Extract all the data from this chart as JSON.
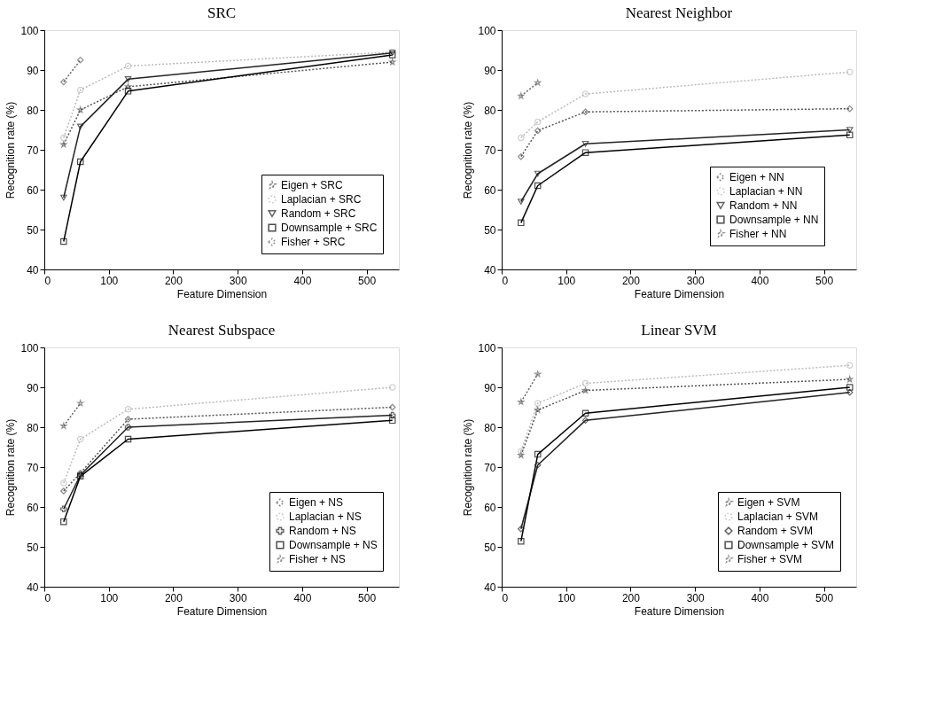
{
  "chart_data": [
    {
      "type": "line",
      "title": "SRC",
      "xlabel": "Feature Dimension",
      "ylabel": "Recognition rate (%)",
      "xlim": [
        0,
        550
      ],
      "xticks": [
        0,
        100,
        200,
        300,
        400,
        500
      ],
      "ylim": [
        40,
        100
      ],
      "yticks": [
        40,
        50,
        60,
        70,
        80,
        90,
        100
      ],
      "grid": false,
      "legend": "bottom right",
      "series": [
        {
          "name": "Eigen + SRC",
          "color": "#555555",
          "marker": "star",
          "line_style": "dotted",
          "x": [
            30,
            56,
            130,
            540
          ],
          "values": [
            71.3,
            80,
            85.8,
            92
          ]
        },
        {
          "name": "Laplacian + SRC",
          "color": "#bbbbbb",
          "marker": "circle",
          "line_style": "dotted",
          "x": [
            30,
            56,
            130,
            540
          ],
          "values": [
            73,
            85,
            91,
            94.5
          ]
        },
        {
          "name": "Random + SRC",
          "color": "#222222",
          "marker": "triangle",
          "line_style": "solid",
          "x": [
            30,
            56,
            130,
            540
          ],
          "values": [
            58,
            75.8,
            87.7,
            94.3
          ]
        },
        {
          "name": "Downsample + SRC",
          "color": "#000000",
          "marker": "square",
          "line_style": "solid",
          "x": [
            30,
            56,
            130,
            540
          ],
          "values": [
            47,
            67,
            84.7,
            93.8
          ]
        },
        {
          "name": "Fisher + SRC",
          "color": "#666666",
          "marker": "diamond",
          "line_style": "dotted",
          "x": [
            30,
            56
          ],
          "values": [
            87,
            92.5
          ]
        }
      ]
    },
    {
      "type": "line",
      "title": "Nearest Neighbor",
      "xlabel": "Feature Dimension",
      "ylabel": "Recognition rate (%)",
      "xlim": [
        0,
        550
      ],
      "xticks": [
        0,
        100,
        200,
        300,
        400,
        500
      ],
      "ylim": [
        40,
        100
      ],
      "yticks": [
        40,
        50,
        60,
        70,
        80,
        90,
        100
      ],
      "grid": false,
      "legend": "right",
      "series": [
        {
          "name": "Eigen + NN",
          "color": "#555555",
          "marker": "diamond",
          "line_style": "dotted",
          "x": [
            30,
            56,
            130,
            540
          ],
          "values": [
            68.3,
            74.8,
            79.5,
            80.3
          ]
        },
        {
          "name": "Laplacian + NN",
          "color": "#bbbbbb",
          "marker": "circle",
          "line_style": "dotted",
          "x": [
            30,
            56,
            130,
            540
          ],
          "values": [
            73,
            77,
            84,
            89.5
          ]
        },
        {
          "name": "Random + NN",
          "color": "#222222",
          "marker": "triangle",
          "line_style": "solid",
          "x": [
            30,
            56,
            130,
            540
          ],
          "values": [
            57,
            64,
            71.5,
            75
          ]
        },
        {
          "name": "Downsample + NN",
          "color": "#000000",
          "marker": "square",
          "line_style": "solid",
          "x": [
            30,
            56,
            130,
            540
          ],
          "values": [
            51.7,
            61,
            69.3,
            73.7
          ]
        },
        {
          "name": "Fisher + NN",
          "color": "#666666",
          "marker": "star",
          "line_style": "dotted",
          "x": [
            30,
            56
          ],
          "values": [
            83.5,
            86.8
          ]
        }
      ]
    },
    {
      "type": "line",
      "title": "Nearest Subspace",
      "xlabel": "Feature Dimension",
      "ylabel": "Recognition rate (%)",
      "xlim": [
        0,
        550
      ],
      "xticks": [
        0,
        100,
        200,
        300,
        400,
        500
      ],
      "ylim": [
        40,
        100
      ],
      "yticks": [
        40,
        50,
        60,
        70,
        80,
        90,
        100
      ],
      "grid": false,
      "legend": "bottom right",
      "series": [
        {
          "name": "Eigen + NS",
          "color": "#555555",
          "marker": "diamond",
          "line_style": "dotted",
          "x": [
            30,
            56,
            130,
            540
          ],
          "values": [
            64,
            68.5,
            82,
            85
          ]
        },
        {
          "name": "Laplacian + NS",
          "color": "#bbbbbb",
          "marker": "circle",
          "line_style": "dotted",
          "x": [
            30,
            56,
            130,
            540
          ],
          "values": [
            66,
            77,
            84.5,
            90
          ]
        },
        {
          "name": "Random + NS",
          "color": "#222222",
          "marker": "cross",
          "line_style": "solid",
          "x": [
            30,
            56,
            130,
            540
          ],
          "values": [
            59.5,
            68,
            80,
            83
          ]
        },
        {
          "name": "Downsample + NS",
          "color": "#000000",
          "marker": "square",
          "line_style": "solid",
          "x": [
            30,
            56,
            130,
            540
          ],
          "values": [
            56.3,
            67.7,
            77,
            81.7
          ]
        },
        {
          "name": "Fisher + NS",
          "color": "#666666",
          "marker": "star",
          "line_style": "dotted",
          "x": [
            30,
            56
          ],
          "values": [
            80.3,
            86
          ]
        }
      ]
    },
    {
      "type": "line",
      "title": "Linear SVM",
      "xlabel": "Feature Dimension",
      "ylabel": "Recognition rate (%)",
      "xlim": [
        0,
        550
      ],
      "xticks": [
        0,
        100,
        200,
        300,
        400,
        500
      ],
      "ylim": [
        40,
        100
      ],
      "yticks": [
        40,
        50,
        60,
        70,
        80,
        90,
        100
      ],
      "grid": false,
      "legend": "bottom right",
      "series": [
        {
          "name": "Eigen + SVM",
          "color": "#555555",
          "marker": "star",
          "line_style": "dotted",
          "x": [
            30,
            56,
            130,
            540
          ],
          "values": [
            73,
            84.3,
            89.2,
            92
          ]
        },
        {
          "name": "Laplacian + SVM",
          "color": "#bbbbbb",
          "marker": "circle",
          "line_style": "dotted",
          "x": [
            30,
            56,
            130,
            540
          ],
          "values": [
            74,
            86,
            91,
            95.5
          ]
        },
        {
          "name": "Random + SVM",
          "color": "#222222",
          "marker": "diamond",
          "line_style": "solid",
          "x": [
            30,
            56,
            130,
            540
          ],
          "values": [
            54.5,
            70.5,
            81.7,
            88.7
          ]
        },
        {
          "name": "Downsample + SVM",
          "color": "#000000",
          "marker": "square",
          "line_style": "solid",
          "x": [
            30,
            56,
            130,
            540
          ],
          "values": [
            51.4,
            73.2,
            83.5,
            90
          ]
        },
        {
          "name": "Fisher + SVM",
          "color": "#666666",
          "marker": "star",
          "line_style": "dotted",
          "x": [
            30,
            56
          ],
          "values": [
            86.3,
            93.3
          ]
        }
      ]
    }
  ]
}
